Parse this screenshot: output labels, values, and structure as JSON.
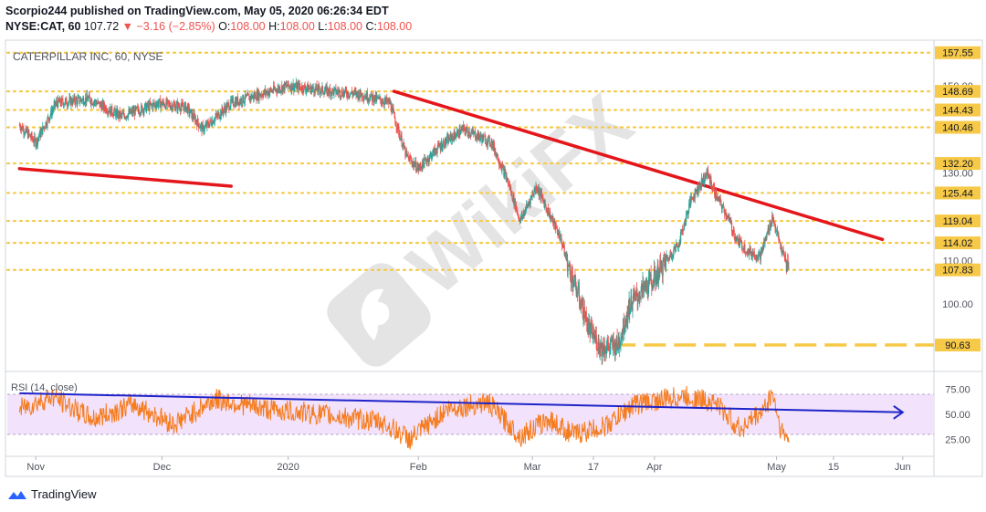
{
  "header": {
    "publisher_line": "Scorpio244 published on TradingView.com, May 05, 2020 06:26:34 EDT",
    "symbol": "NYSE:CAT, 60",
    "last": "107.72",
    "change": "−3.16 (−2.85%)",
    "o_label": "O:",
    "o": "108.00",
    "h_label": "H:",
    "h": "108.00",
    "l_label": "L:",
    "l": "108.00",
    "c_label": "C:",
    "c": "108.00"
  },
  "chart_title": "CATERPILLAR INC, 60, NYSE",
  "rsi_label": "RSI (14, close)",
  "footer_brand": "TradingView",
  "watermark": "WikiFX",
  "colors": {
    "candle_up": "#26a69a",
    "candle_down": "#ef5350",
    "trendline": "#e4161b",
    "level": "#f7c948",
    "rsi_line": "#f57c1f",
    "rsi_trend": "#1f24c9",
    "rsi_band": "#f3e2fb"
  },
  "chart_data": [
    {
      "type": "candlestick",
      "title": "CATERPILLAR INC, 60, NYSE",
      "ylim": [
        85,
        160
      ],
      "price_axis_ticks": [
        100.0,
        110.0,
        130.0,
        150.0
      ],
      "x_tick_labels": [
        "Nov",
        "Dec",
        "2020",
        "Feb",
        "Mar",
        "17",
        "Apr",
        "May",
        "15",
        "Jun"
      ],
      "x_tick_dates": [
        "2019-11-01",
        "2019-12-02",
        "2020-01-02",
        "2020-02-03",
        "2020-03-02",
        "2020-03-17",
        "2020-04-01",
        "2020-05-01",
        "2020-05-15",
        "2020-06-01"
      ],
      "horizontal_levels": [
        {
          "label": "157.55",
          "value": 157.55,
          "style": "dotted"
        },
        {
          "label": "148.69",
          "value": 148.69,
          "style": "dotted"
        },
        {
          "label": "144.43",
          "value": 144.43,
          "style": "dotted"
        },
        {
          "label": "140.46",
          "value": 140.46,
          "style": "dotted"
        },
        {
          "label": "132.20",
          "value": 132.2,
          "style": "dotted"
        },
        {
          "label": "125.44",
          "value": 125.44,
          "style": "dotted"
        },
        {
          "label": "119.04",
          "value": 119.04,
          "style": "dotted"
        },
        {
          "label": "114.02",
          "value": 114.02,
          "style": "dotted"
        },
        {
          "label": "107.83",
          "value": 107.83,
          "style": "dotted"
        },
        {
          "label": "90.63",
          "value": 90.63,
          "style": "dashed"
        }
      ],
      "trendlines": [
        {
          "from": {
            "date": "2019-10-28",
            "price": 131.0
          },
          "to": {
            "date": "2019-12-19",
            "price": 127.0
          }
        },
        {
          "from": {
            "date": "2020-01-28",
            "price": 148.7
          },
          "to": {
            "date": "2020-05-27",
            "price": 114.8
          }
        }
      ],
      "price_path": [
        {
          "date": "2019-10-28",
          "price": 141
        },
        {
          "date": "2019-11-01",
          "price": 137
        },
        {
          "date": "2019-11-06",
          "price": 146
        },
        {
          "date": "2019-11-14",
          "price": 147
        },
        {
          "date": "2019-11-22",
          "price": 143
        },
        {
          "date": "2019-12-01",
          "price": 146
        },
        {
          "date": "2019-12-08",
          "price": 145
        },
        {
          "date": "2019-12-12",
          "price": 140
        },
        {
          "date": "2019-12-19",
          "price": 146
        },
        {
          "date": "2019-12-26",
          "price": 148
        },
        {
          "date": "2020-01-02",
          "price": 150
        },
        {
          "date": "2020-01-10",
          "price": 149
        },
        {
          "date": "2020-01-20",
          "price": 148
        },
        {
          "date": "2020-01-27",
          "price": 146
        },
        {
          "date": "2020-01-31",
          "price": 134
        },
        {
          "date": "2020-02-03",
          "price": 131
        },
        {
          "date": "2020-02-08",
          "price": 136
        },
        {
          "date": "2020-02-14",
          "price": 140
        },
        {
          "date": "2020-02-21",
          "price": 137
        },
        {
          "date": "2020-02-25",
          "price": 128
        },
        {
          "date": "2020-02-28",
          "price": 119
        },
        {
          "date": "2020-03-03",
          "price": 127
        },
        {
          "date": "2020-03-06",
          "price": 121
        },
        {
          "date": "2020-03-09",
          "price": 115
        },
        {
          "date": "2020-03-11",
          "price": 108
        },
        {
          "date": "2020-03-13",
          "price": 103
        },
        {
          "date": "2020-03-16",
          "price": 94
        },
        {
          "date": "2020-03-19",
          "price": 90
        },
        {
          "date": "2020-03-23",
          "price": 90.6
        },
        {
          "date": "2020-03-26",
          "price": 100
        },
        {
          "date": "2020-04-01",
          "price": 106
        },
        {
          "date": "2020-04-07",
          "price": 114
        },
        {
          "date": "2020-04-10",
          "price": 124
        },
        {
          "date": "2020-04-14",
          "price": 130
        },
        {
          "date": "2020-04-16",
          "price": 125
        },
        {
          "date": "2020-04-19",
          "price": 120
        },
        {
          "date": "2020-04-21",
          "price": 115
        },
        {
          "date": "2020-04-24",
          "price": 112
        },
        {
          "date": "2020-04-27",
          "price": 111
        },
        {
          "date": "2020-04-30",
          "price": 120
        },
        {
          "date": "2020-05-02",
          "price": 113
        },
        {
          "date": "2020-05-04",
          "price": 107.8
        }
      ]
    },
    {
      "type": "line",
      "title": "RSI (14, close)",
      "ylim": [
        10,
        90
      ],
      "y_ticks": [
        75.0,
        50.0,
        25.0
      ],
      "band": [
        30,
        70
      ],
      "rsi_path": [
        {
          "date": "2019-10-28",
          "value": 55
        },
        {
          "date": "2019-11-05",
          "value": 68
        },
        {
          "date": "2019-11-15",
          "value": 45
        },
        {
          "date": "2019-11-25",
          "value": 60
        },
        {
          "date": "2019-12-05",
          "value": 40
        },
        {
          "date": "2019-12-15",
          "value": 65
        },
        {
          "date": "2019-12-28",
          "value": 55
        },
        {
          "date": "2020-01-10",
          "value": 50
        },
        {
          "date": "2020-01-25",
          "value": 42
        },
        {
          "date": "2020-02-01",
          "value": 25
        },
        {
          "date": "2020-02-10",
          "value": 55
        },
        {
          "date": "2020-02-20",
          "value": 62
        },
        {
          "date": "2020-02-28",
          "value": 28
        },
        {
          "date": "2020-03-06",
          "value": 45
        },
        {
          "date": "2020-03-12",
          "value": 30
        },
        {
          "date": "2020-03-20",
          "value": 38
        },
        {
          "date": "2020-03-27",
          "value": 60
        },
        {
          "date": "2020-04-08",
          "value": 68
        },
        {
          "date": "2020-04-16",
          "value": 62
        },
        {
          "date": "2020-04-22",
          "value": 35
        },
        {
          "date": "2020-04-28",
          "value": 55
        },
        {
          "date": "2020-04-30",
          "value": 72
        },
        {
          "date": "2020-05-02",
          "value": 35
        },
        {
          "date": "2020-05-04",
          "value": 24
        }
      ],
      "trendline": {
        "from": {
          "date": "2019-10-28",
          "value": 71
        },
        "to": {
          "date": "2020-06-01",
          "value": 52
        },
        "arrow": true
      }
    }
  ]
}
